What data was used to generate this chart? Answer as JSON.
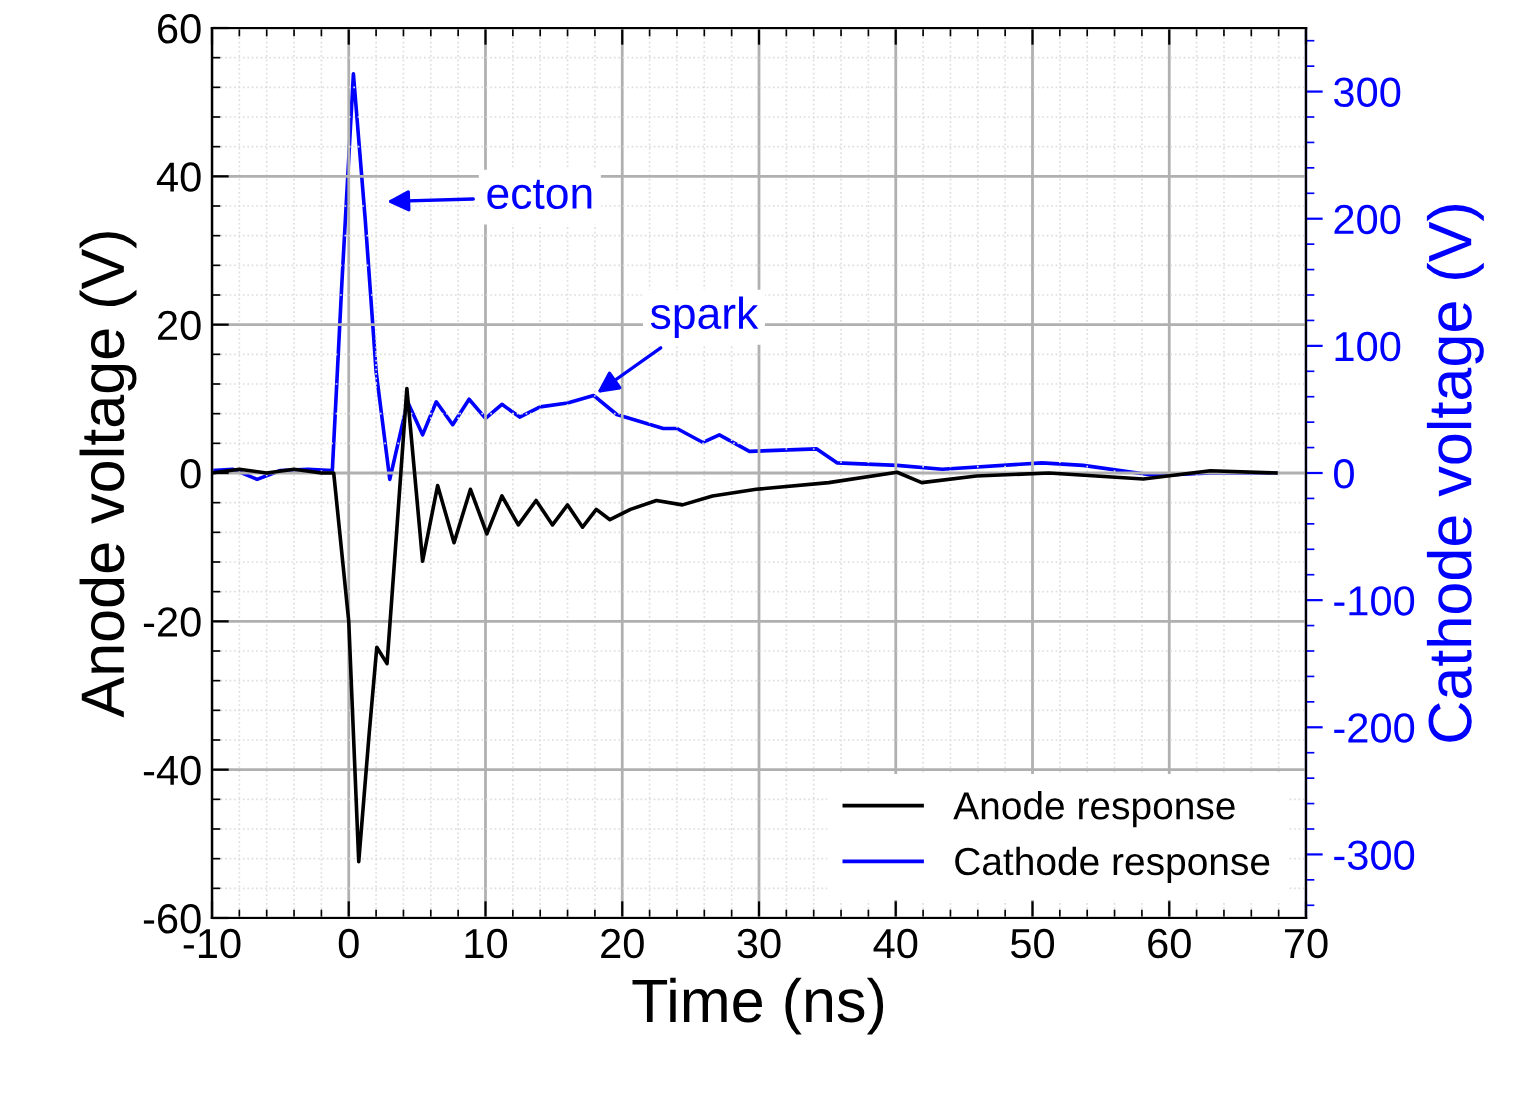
{
  "chart_data": {
    "type": "line",
    "xlabel": "Time (ns)",
    "ylabel": "Anode voltage (V)",
    "y2label": "Cathode voltage (V)",
    "xlim": [
      -10,
      70
    ],
    "xticks": [
      -10,
      0,
      10,
      20,
      30,
      40,
      50,
      60,
      70
    ],
    "ylim": [
      -60,
      60
    ],
    "yticks": [
      -60,
      -40,
      -20,
      0,
      20,
      40,
      60
    ],
    "y2lim": [
      -350,
      350
    ],
    "y2ticks": [
      -300,
      -200,
      -100,
      0,
      100,
      200,
      300
    ],
    "grid": true,
    "legend": "bottom right",
    "line_style": "solid",
    "marker": "none",
    "series": [
      {
        "name": "Anode response",
        "color": "#000000",
        "x": [
          -10,
          -8,
          -6,
          -4,
          -2,
          -1.1,
          0,
          0.73,
          1.5,
          2.05,
          2.8,
          3.5,
          4.25,
          5.4,
          6.5,
          7.7,
          8.9,
          10.1,
          11.2,
          12.4,
          13.7,
          14.9,
          16,
          17.1,
          18.1,
          19.1,
          20.6,
          22.5,
          24.4,
          26.6,
          29.8,
          35.1,
          40.1,
          41.9,
          45.9,
          51.2,
          58.1,
          63,
          67.8
        ],
        "values": [
          0,
          0.5,
          0,
          0.5,
          0,
          0,
          -20,
          -52.4,
          -35,
          -23.5,
          -25.7,
          -8,
          11.4,
          -11.9,
          -1.7,
          -9.4,
          -2.2,
          -8.2,
          -3.1,
          -7,
          -3.7,
          -7,
          -4.3,
          -7.3,
          -4.9,
          -6.3,
          -4.9,
          -3.7,
          -4.3,
          -3.1,
          -2.2,
          -1.3,
          0.1,
          -1.3,
          -0.4,
          0,
          -0.8,
          0.3,
          0
        ]
      },
      {
        "name": "Cathode response",
        "color": "#0000ff",
        "axis": "y2",
        "x": [
          -10,
          -8.5,
          -6.7,
          -5,
          -3,
          -1.2,
          -0.5,
          0.34,
          1.2,
          2,
          3,
          4.3,
          5.4,
          6.4,
          7.6,
          8.8,
          10,
          11.2,
          12.5,
          14,
          16,
          17.9,
          19.6,
          23,
          24,
          25.9,
          27.1,
          29.3,
          34.2,
          35.7,
          40.1,
          43.4,
          50.7,
          53.7,
          59,
          63,
          67.8
        ],
        "values": [
          2,
          3,
          -5,
          2,
          3,
          2,
          150,
          314,
          200,
          80,
          -5,
          56,
          30,
          56,
          38,
          58,
          43,
          54,
          44,
          52,
          55,
          61,
          46,
          35,
          35,
          24,
          30,
          17,
          19,
          8,
          6,
          3,
          8,
          6,
          -2,
          0,
          0
        ]
      }
    ],
    "annotations": [
      "ecton",
      "spark"
    ]
  }
}
